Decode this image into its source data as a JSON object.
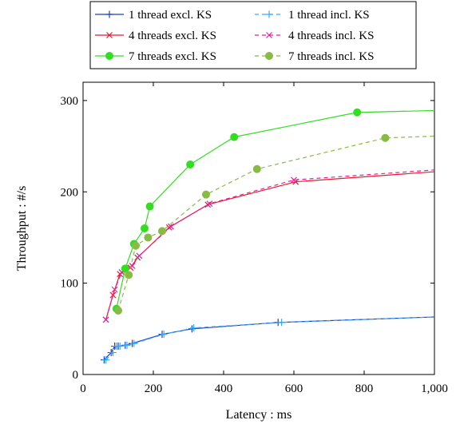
{
  "chart_data": {
    "type": "line",
    "xlabel": "Latency : ms",
    "ylabel": "Throughput : #/s",
    "xlim": [
      0,
      1000
    ],
    "ylim": [
      0,
      320
    ],
    "xticks": [
      0,
      200,
      400,
      600,
      800,
      1000
    ],
    "xtick_labels": [
      "0",
      "200",
      "400",
      "600",
      "800",
      "1,000"
    ],
    "yticks": [
      0,
      100,
      200,
      300
    ],
    "ytick_labels": [
      "0",
      "100",
      "200",
      "300"
    ],
    "grid": false,
    "legend_position": "top-center, above plot",
    "series": [
      {
        "name": "1 thread excl. KS",
        "color": "#1f3fbf",
        "dash": "solid",
        "marker": "plus",
        "x": [
          60,
          80,
          90,
          100,
          120,
          140,
          225,
          310,
          555,
          1000
        ],
        "y": [
          16,
          24,
          31,
          31,
          32,
          34,
          44,
          50,
          57,
          63
        ]
      },
      {
        "name": "1 thread incl. KS",
        "color": "#33aaff",
        "dash": "dashed",
        "marker": "plus",
        "x": [
          65,
          85,
          95,
          105,
          125,
          145,
          230,
          315,
          565,
          1000
        ],
        "y": [
          16,
          24,
          31,
          31,
          32,
          34,
          44,
          51,
          57,
          63
        ]
      },
      {
        "name": "4 threads excl. KS",
        "color": "#e8192c",
        "dash": "solid",
        "marker": "x",
        "x": [
          65,
          85,
          105,
          135,
          155,
          245,
          355,
          605,
          1000
        ],
        "y": [
          60,
          87,
          110,
          117,
          128,
          161,
          186,
          211,
          222
        ]
      },
      {
        "name": "4 threads incl. KS",
        "color": "#e020a0",
        "dash": "dashed",
        "marker": "x",
        "x": [
          65,
          90,
          110,
          140,
          160,
          250,
          360,
          600,
          1000
        ],
        "y": [
          60,
          93,
          112,
          119,
          130,
          162,
          187,
          213,
          224
        ]
      },
      {
        "name": "7 threads excl. KS",
        "color": "#33dd22",
        "dash": "solid",
        "marker": "circle",
        "x": [
          95,
          120,
          145,
          175,
          190,
          305,
          430,
          780,
          1000
        ],
        "y": [
          72,
          116,
          143,
          160,
          184,
          230,
          260,
          287,
          289
        ]
      },
      {
        "name": "7 threads incl. KS",
        "color": "#88bb44",
        "dash": "dashed",
        "marker": "circle",
        "x": [
          100,
          130,
          150,
          185,
          225,
          350,
          495,
          860,
          1000
        ],
        "y": [
          70,
          109,
          141,
          150,
          157,
          197,
          225,
          259,
          261
        ]
      }
    ]
  }
}
